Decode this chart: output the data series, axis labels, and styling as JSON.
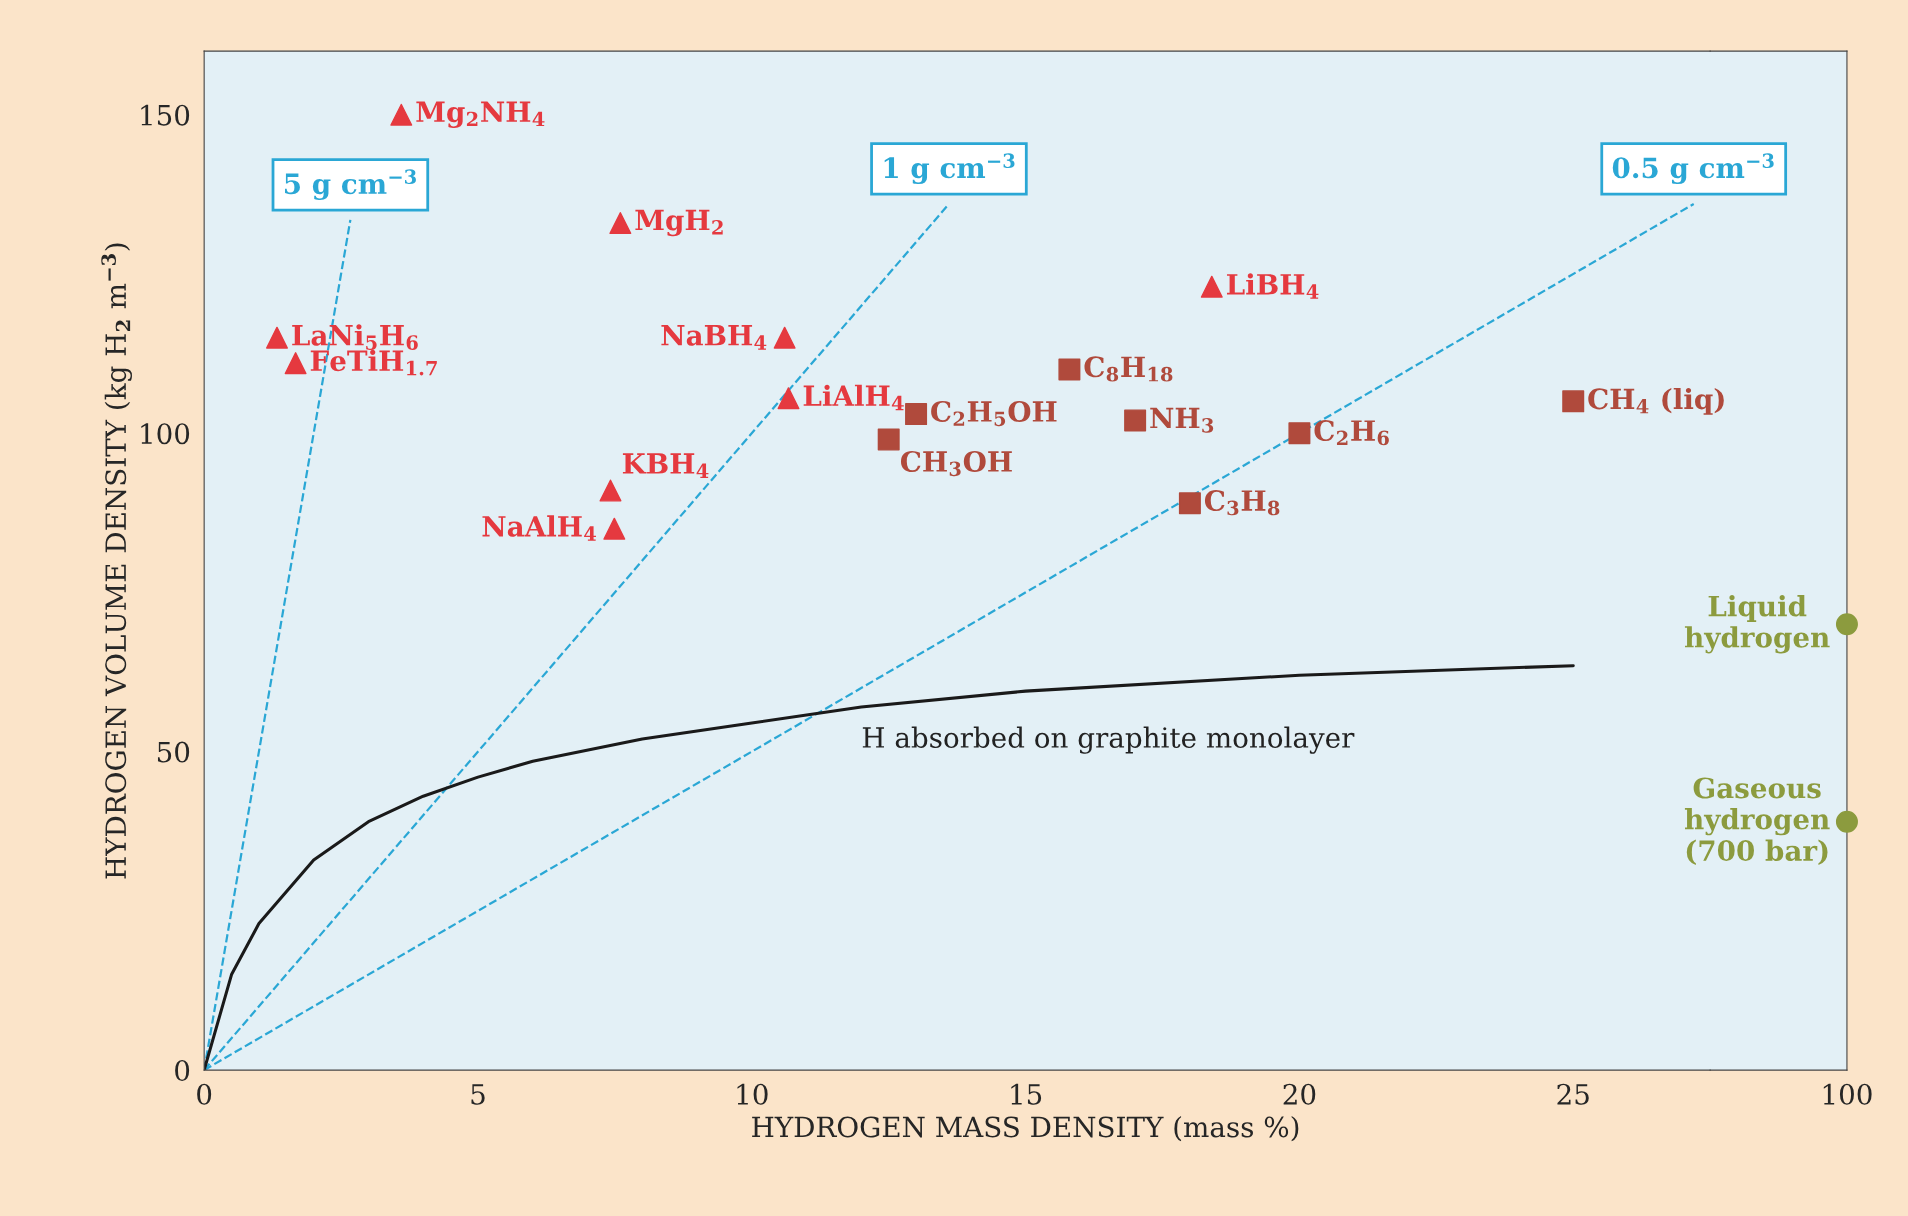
{
  "chart_data": [
    {
      "type": "scatter",
      "xlabel": "HYDROGEN MASS DENSITY (mass %)",
      "ylabel": "HYDROGEN VOLUME DENSITY (kg H$_{2}$ m$^{−3}$)",
      "xlim": [
        0,
        27.5
      ],
      "xticks": [
        0,
        5,
        10,
        15,
        20,
        25
      ],
      "ylim": [
        0,
        160
      ],
      "yticks": [
        0,
        50,
        100,
        150
      ],
      "grid": false,
      "legend": false,
      "series": [
        {
          "type": "line",
          "name": "5 g cm$^{−3}$",
          "color": "#2aa7d5",
          "line_style": "dashed",
          "marker": "none",
          "x": [
            0,
            2.67
          ],
          "values": [
            0,
            133.5
          ]
        },
        {
          "type": "line",
          "name": "1 g cm$^{−3}$",
          "color": "#2aa7d5",
          "line_style": "dashed",
          "marker": "none",
          "x": [
            0,
            13.6
          ],
          "values": [
            0,
            136
          ]
        },
        {
          "type": "line",
          "name": "0.5 g cm$^{−3}$",
          "color": "#2aa7d5",
          "line_style": "dashed",
          "marker": "none",
          "x": [
            0,
            27.2
          ],
          "values": [
            0,
            136
          ]
        },
        {
          "type": "line",
          "color": "#1a1a1a",
          "line_style": "solid",
          "marker": "none",
          "x": [
            0,
            0.5,
            1,
            2,
            3,
            4,
            5,
            6,
            8,
            10,
            12,
            15,
            20,
            25
          ],
          "values": [
            0,
            15,
            23,
            33,
            39,
            43,
            46,
            48.5,
            52,
            54.5,
            57,
            59.5,
            62,
            63.5
          ]
        },
        {
          "type": "scatter",
          "color": "#e5393f",
          "marker": "triangle",
          "x": [
            3.6,
            7.6,
            1.33,
            1.67,
            10.6,
            10.67,
            7.42,
            7.49,
            18.4
          ],
          "values": [
            150,
            133,
            115,
            111,
            115,
            105.5,
            91,
            85,
            123
          ]
        },
        {
          "type": "scatter",
          "color": "#b04a3c",
          "marker": "square",
          "x": [
            15.8,
            13,
            12.5,
            17,
            20,
            18,
            25
          ],
          "values": [
            110,
            103,
            99,
            102,
            100,
            89,
            105
          ]
        }
      ],
      "annotations": [
        {
          "text": "Mg$_{2}$NH$_{4}$",
          "x": 3.6,
          "y": 150
        },
        {
          "text": "MgH$_{2}$",
          "x": 7.6,
          "y": 133
        },
        {
          "text": "LaNi$_{5}$H$_{6}$",
          "x": 1.33,
          "y": 115
        },
        {
          "text": "FeTiH$_{1.7}$",
          "x": 1.67,
          "y": 111
        },
        {
          "text": "NaBH$_{4}$",
          "x": 10.6,
          "y": 115
        },
        {
          "text": "LiAlH$_{4}$",
          "x": 10.67,
          "y": 105.5
        },
        {
          "text": "KBH$_{4}$",
          "x": 7.42,
          "y": 91
        },
        {
          "text": "NaAlH$_{4}$",
          "x": 7.49,
          "y": 85
        },
        {
          "text": "LiBH$_{4}$",
          "x": 18.4,
          "y": 123
        },
        {
          "text": "C$_{8}$H$_{18}$",
          "x": 15.8,
          "y": 110
        },
        {
          "text": "C$_{2}$H$_{5}$OH",
          "x": 13,
          "y": 103
        },
        {
          "text": "CH$_{3}$OH",
          "x": 12.5,
          "y": 99
        },
        {
          "text": "NH$_{3}$",
          "x": 17,
          "y": 102
        },
        {
          "text": "C$_{2}$H$_{6}$",
          "x": 20,
          "y": 100
        },
        {
          "text": "C$_{3}$H$_{8}$",
          "x": 18,
          "y": 89
        },
        {
          "text": "CH$_{4}$ (liq)",
          "x": 25,
          "y": 105
        },
        {
          "text": "H absorbed on graphite monolayer",
          "x": 12,
          "y": 57
        }
      ]
    },
    {
      "type": "scatter",
      "categories": [
        "100"
      ],
      "ylim": [
        0,
        160
      ],
      "tick_labels": "x",
      "grid": false,
      "legend": false,
      "series": [
        {
          "type": "scatter",
          "color": "#8c9b3e",
          "marker": "circle",
          "values": [
            70
          ]
        },
        {
          "type": "scatter",
          "color": "#8c9b3e",
          "marker": "circle",
          "values": [
            39
          ]
        }
      ],
      "annotations": [
        {
          "text": "Liquid\nhydrogen",
          "x": "100",
          "y": 70
        },
        {
          "text": "Gaseous\nhydrogen\n(700 bar)",
          "x": "100",
          "y": 39
        }
      ]
    }
  ]
}
